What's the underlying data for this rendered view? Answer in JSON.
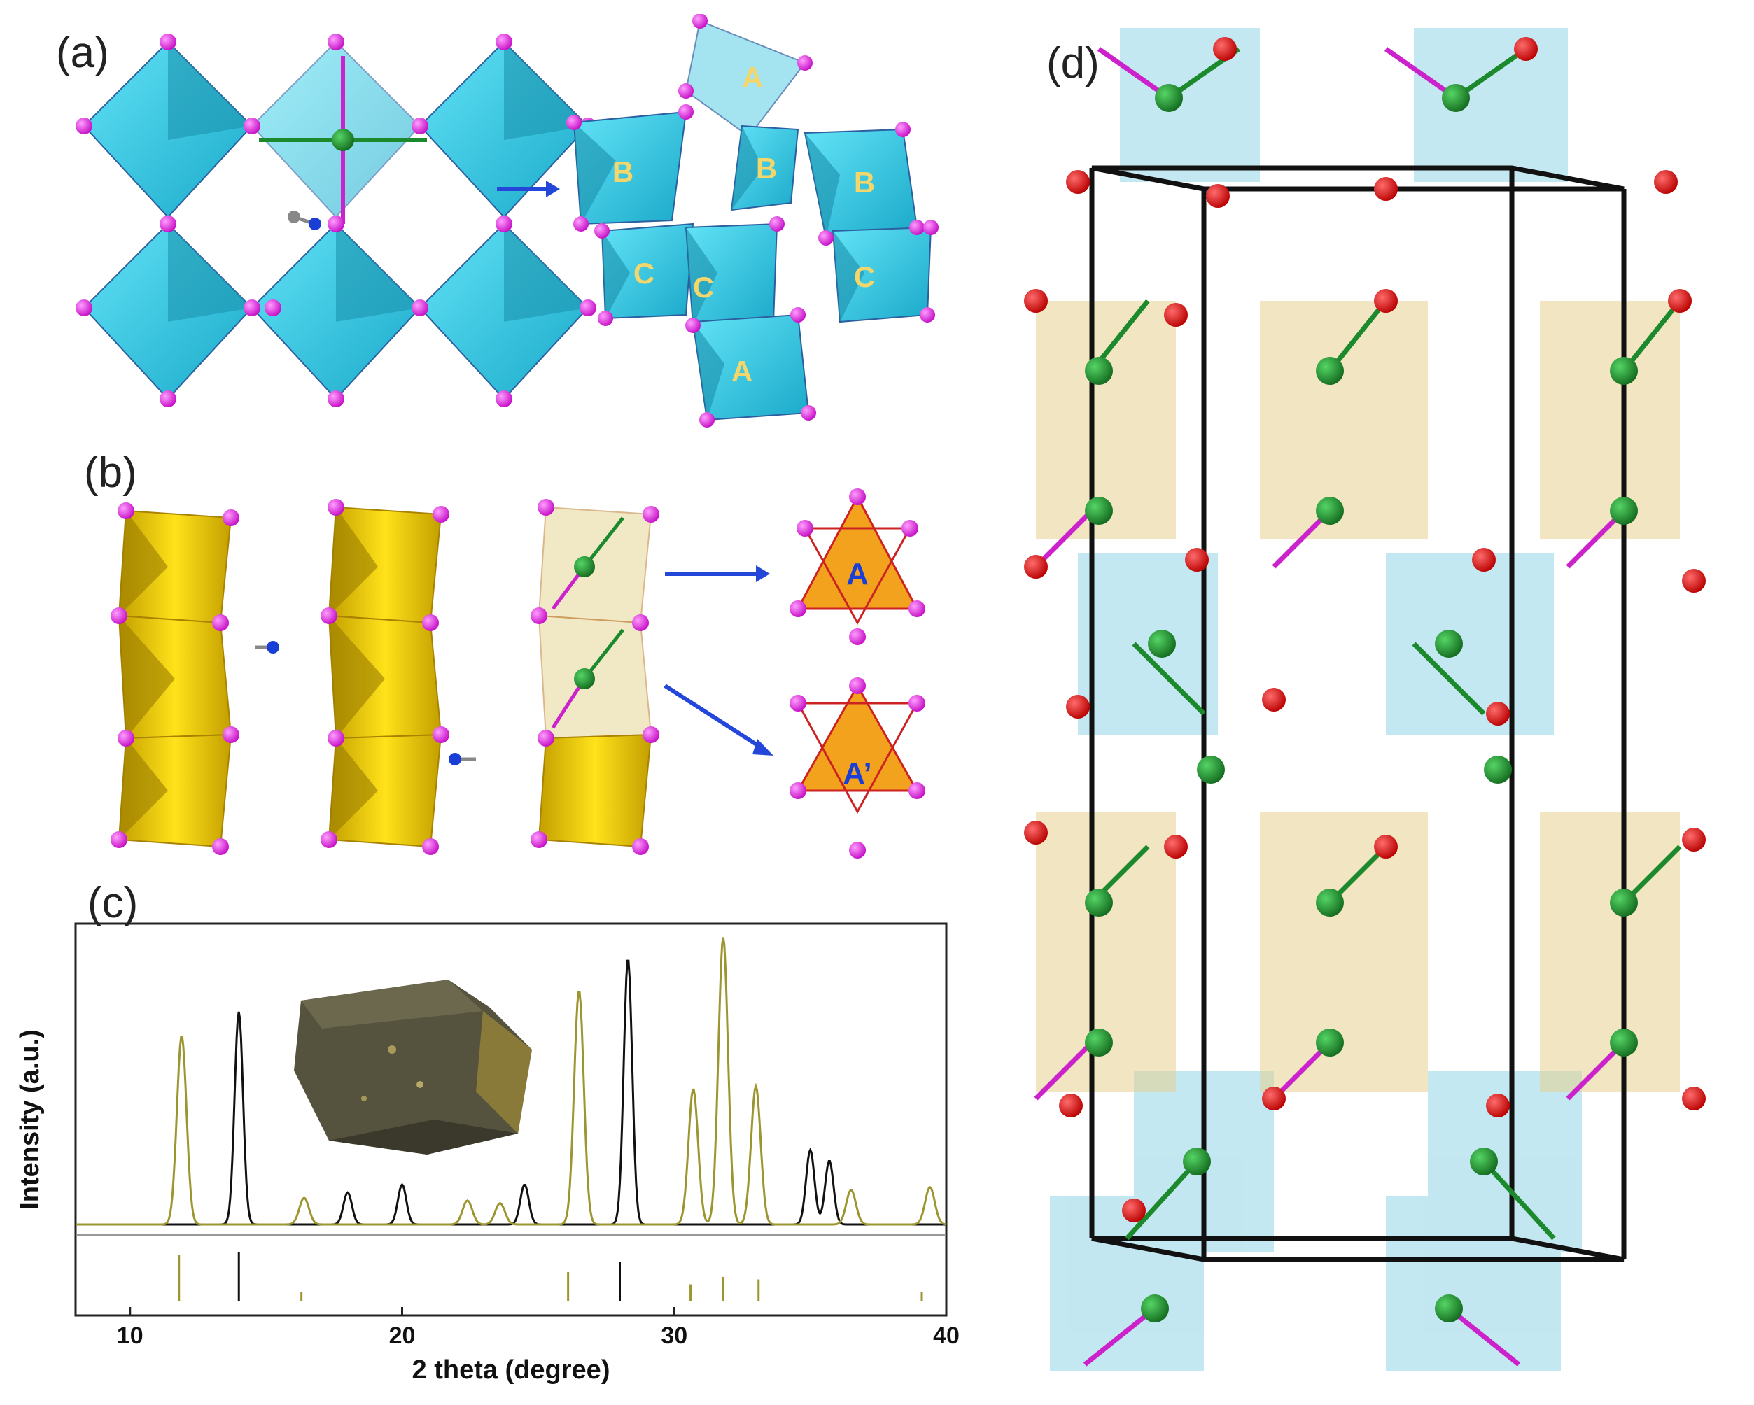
{
  "panels": {
    "a": {
      "label": "(a)",
      "left_octahedra": [
        "",
        "",
        "",
        "",
        "",
        ""
      ],
      "right_octahedra": [
        {
          "letter": "A"
        },
        {
          "letter": "B"
        },
        {
          "letter": "B"
        },
        {
          "letter": "B"
        },
        {
          "letter": "C"
        },
        {
          "letter": "C"
        },
        {
          "letter": "C"
        },
        {
          "letter": "A"
        }
      ]
    },
    "b": {
      "label": "(b)",
      "triangles": [
        {
          "letter": "A"
        },
        {
          "letter": "A’"
        }
      ]
    },
    "c": {
      "label": "(c)",
      "xlabel": "2 theta (degree)",
      "ylabel": "Intensity (a.u.)",
      "xticks": [
        "10",
        "20",
        "30",
        "40"
      ]
    },
    "d": {
      "label": "(d)"
    }
  },
  "colors": {
    "cyan": "#39c9e8",
    "cyan_dark": "#1b8fab",
    "yellow": "#f2d400",
    "yellow_dark": "#b59400",
    "orange": "#f2a21c",
    "magenta": "#e51ee5",
    "green": "#1c8a2c",
    "red": "#e01010",
    "blue": "#1a3fd6",
    "olive": "#9c9630",
    "black": "#111111",
    "letter": "#f5d66a"
  },
  "chart_data": {
    "type": "line",
    "xlabel": "2 theta (degree)",
    "ylabel": "Intensity (a.u.)",
    "xlim": [
      8,
      40
    ],
    "x_ticks": [
      10,
      20,
      30,
      40
    ],
    "grid": false,
    "peaks_black": [
      {
        "x": 14.0,
        "h": 0.8
      },
      {
        "x": 18.0,
        "h": 0.12
      },
      {
        "x": 20.0,
        "h": 0.15
      },
      {
        "x": 24.5,
        "h": 0.15
      },
      {
        "x": 28.3,
        "h": 1.0
      },
      {
        "x": 35.0,
        "h": 0.28
      },
      {
        "x": 35.7,
        "h": 0.24
      }
    ],
    "peaks_olive": [
      {
        "x": 11.9,
        "h": 0.71
      },
      {
        "x": 16.4,
        "h": 0.1
      },
      {
        "x": 22.4,
        "h": 0.09
      },
      {
        "x": 23.6,
        "h": 0.08
      },
      {
        "x": 26.5,
        "h": 0.88
      },
      {
        "x": 30.7,
        "h": 0.51
      },
      {
        "x": 31.8,
        "h": 1.08
      },
      {
        "x": 33.0,
        "h": 0.52
      },
      {
        "x": 36.5,
        "h": 0.13
      },
      {
        "x": 39.4,
        "h": 0.14
      }
    ],
    "ref_ticks_black": [
      {
        "x": 14.0,
        "h": 1.0
      },
      {
        "x": 28.0,
        "h": 0.8
      }
    ],
    "ref_ticks_olive": [
      {
        "x": 11.8,
        "h": 0.95
      },
      {
        "x": 16.3,
        "h": 0.2
      },
      {
        "x": 26.1,
        "h": 0.6
      },
      {
        "x": 30.6,
        "h": 0.35
      },
      {
        "x": 31.8,
        "h": 0.5
      },
      {
        "x": 33.1,
        "h": 0.45
      },
      {
        "x": 39.1,
        "h": 0.2
      }
    ]
  }
}
